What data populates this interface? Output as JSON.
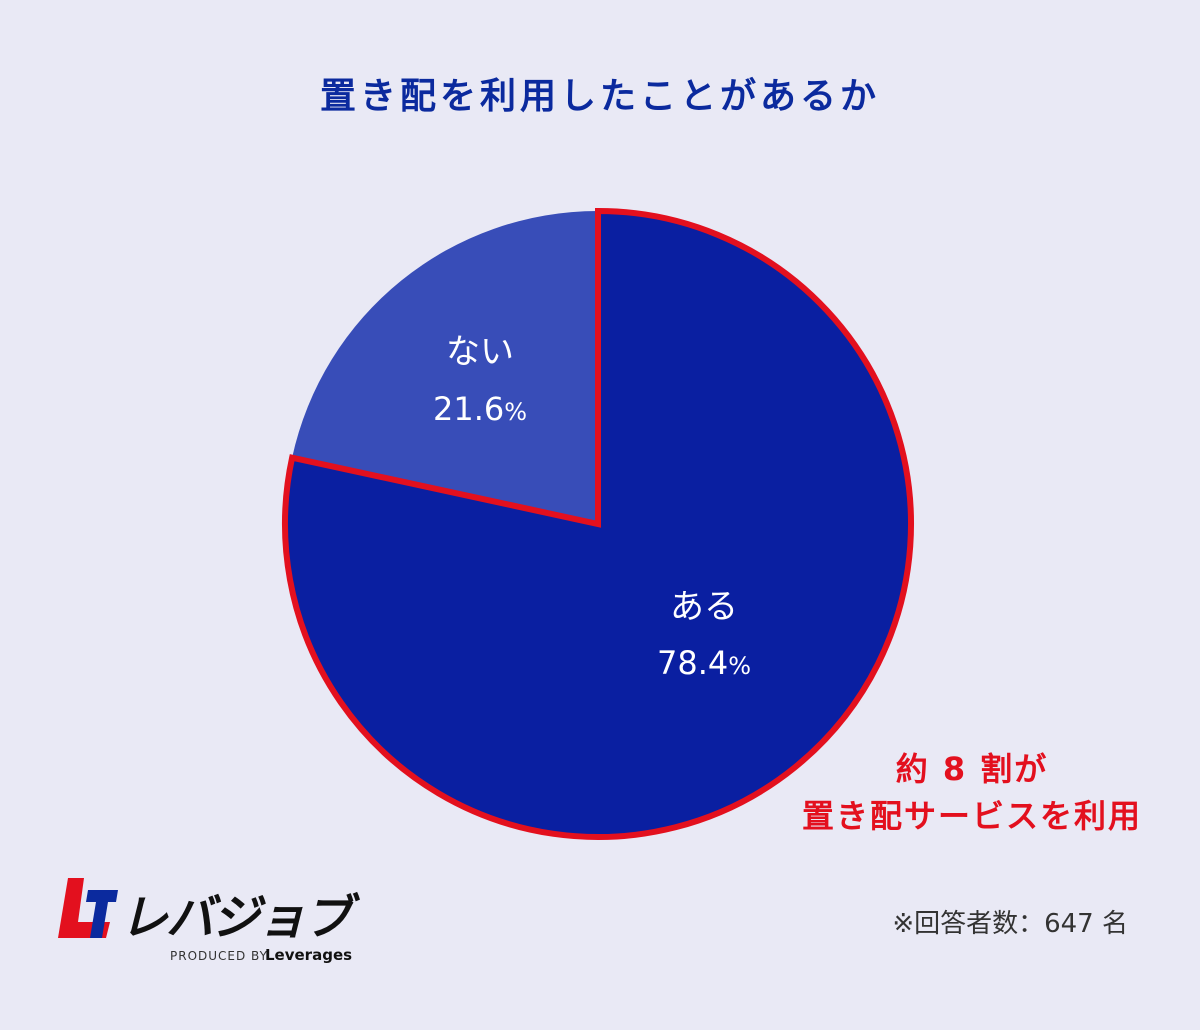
{
  "colors": {
    "background": "#e9e9f5",
    "title": "#0b2a9e",
    "slice_yes": "#0a1fa1",
    "slice_no": "#384db8",
    "highlight": "#e3101e"
  },
  "chart_data": {
    "type": "pie",
    "title": "置き配を利用したことがあるか",
    "slices": [
      {
        "label": "ある",
        "value": 78.4,
        "value_text": "78.4",
        "unit": "%",
        "color": "#0a1fa1",
        "highlighted": true
      },
      {
        "label": "ない",
        "value": 21.6,
        "value_text": "21.6",
        "unit": "%",
        "color": "#384db8",
        "highlighted": false
      }
    ],
    "start_direction": "12 o'clock, clockwise"
  },
  "annotation": {
    "line1": "約 8 割が",
    "line2": "置き配サービスを利用"
  },
  "footnote": "※回答者数：647 名",
  "logo": {
    "icon": "leverages-logo-icon",
    "text": "レバジョブ",
    "produced_by": "PRODUCED BY",
    "brand": "Leverages"
  }
}
